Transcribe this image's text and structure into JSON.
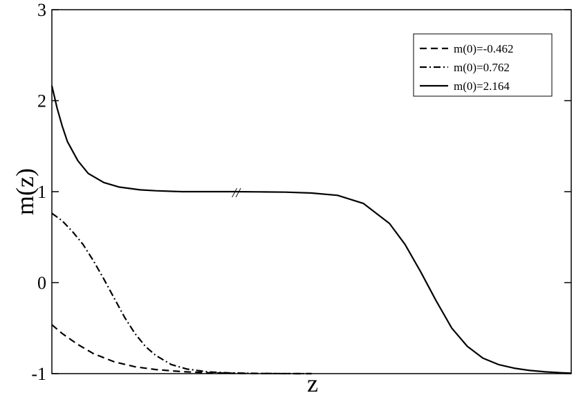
{
  "chart_data": {
    "type": "line",
    "title": "",
    "xlabel": "z",
    "ylabel": "m(z)",
    "xlim": [
      0,
      1
    ],
    "ylim": [
      -1,
      3
    ],
    "x_ticks_labeled": false,
    "y_ticks": [
      "-1",
      "0",
      "1",
      "2",
      "3"
    ],
    "grid": false,
    "legend_position": "top-right",
    "axis_break_mark": "//",
    "series": [
      {
        "name": "m(0)=-0.462",
        "style": "dashed",
        "color": "#000000",
        "x": [
          0,
          0.02,
          0.05,
          0.08,
          0.12,
          0.16,
          0.2,
          0.25,
          0.3,
          0.35,
          0.4,
          0.5
        ],
        "y": [
          -0.462,
          -0.56,
          -0.68,
          -0.78,
          -0.87,
          -0.925,
          -0.955,
          -0.978,
          -0.99,
          -0.996,
          -0.999,
          -1.0
        ]
      },
      {
        "name": "m(0)=0.762",
        "style": "dashdot",
        "color": "#000000",
        "x": [
          0,
          0.02,
          0.04,
          0.06,
          0.08,
          0.1,
          0.12,
          0.14,
          0.16,
          0.18,
          0.2,
          0.23,
          0.26,
          0.3,
          0.34,
          0.4,
          0.45,
          0.5
        ],
        "y": [
          0.762,
          0.68,
          0.56,
          0.42,
          0.24,
          0.04,
          -0.17,
          -0.38,
          -0.56,
          -0.7,
          -0.8,
          -0.9,
          -0.95,
          -0.98,
          -0.992,
          -0.998,
          -1.0,
          -1.0
        ]
      },
      {
        "name": "m(0)=2.164",
        "style": "solid",
        "color": "#000000",
        "x": [
          0,
          0.01,
          0.02,
          0.03,
          0.05,
          0.07,
          0.1,
          0.13,
          0.17,
          0.2,
          0.25,
          0.3,
          0.35,
          0.4,
          0.45,
          0.5,
          0.55,
          0.6,
          0.65,
          0.68,
          0.71,
          0.74,
          0.77,
          0.8,
          0.83,
          0.86,
          0.89,
          0.92,
          0.95,
          0.98,
          1.0
        ],
        "y": [
          2.164,
          1.92,
          1.72,
          1.55,
          1.34,
          1.2,
          1.1,
          1.05,
          1.02,
          1.01,
          1.0,
          1.0,
          1.0,
          0.998,
          0.995,
          0.985,
          0.96,
          0.87,
          0.65,
          0.42,
          0.12,
          -0.2,
          -0.5,
          -0.7,
          -0.83,
          -0.9,
          -0.94,
          -0.965,
          -0.98,
          -0.99,
          -0.995
        ]
      }
    ]
  }
}
